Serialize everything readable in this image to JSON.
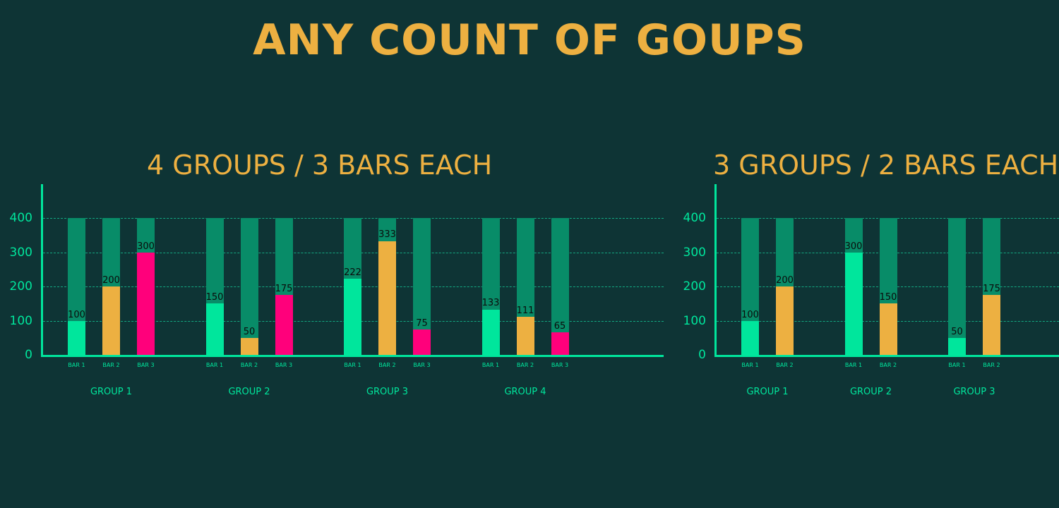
{
  "page": {
    "title": "ANY COUNT OF GOUPS"
  },
  "colors": {
    "background": "#0e3435",
    "title": "#edb041",
    "axis": "#00e69c",
    "grid": "#13a882",
    "bar_background": "#088c68",
    "bar1": "#00e69c",
    "bar2": "#edb041",
    "bar3": "#ff007b"
  },
  "chart_data": [
    {
      "type": "bar",
      "title": "4 GROUPS / 3 BARS EACH",
      "xlabel": "",
      "ylabel": "",
      "ylim": [
        0,
        400
      ],
      "yticks": [
        "0",
        "100",
        "200",
        "300",
        "400"
      ],
      "grid": true,
      "categories": [
        "GROUP 1",
        "GROUP 2",
        "GROUP 3",
        "GROUP 4"
      ],
      "bar_labels": [
        "BAR 1",
        "BAR 2",
        "BAR 3"
      ],
      "series": [
        {
          "name": "BAR 1",
          "values": [
            100,
            150,
            222,
            133
          ]
        },
        {
          "name": "BAR 2",
          "values": [
            200,
            50,
            333,
            111
          ]
        },
        {
          "name": "BAR 3",
          "values": [
            300,
            175,
            75,
            65
          ]
        }
      ]
    },
    {
      "type": "bar",
      "title": "3 GROUPS / 2 BARS EACH",
      "xlabel": "",
      "ylabel": "",
      "ylim": [
        0,
        400
      ],
      "yticks": [
        "0",
        "100",
        "200",
        "300",
        "400"
      ],
      "grid": true,
      "categories": [
        "GROUP 1",
        "GROUP 2",
        "GROUP 3"
      ],
      "bar_labels": [
        "BAR 1",
        "BAR 2"
      ],
      "series": [
        {
          "name": "BAR 1",
          "values": [
            100,
            300,
            50
          ]
        },
        {
          "name": "BAR 2",
          "values": [
            200,
            150,
            175
          ]
        }
      ]
    }
  ]
}
